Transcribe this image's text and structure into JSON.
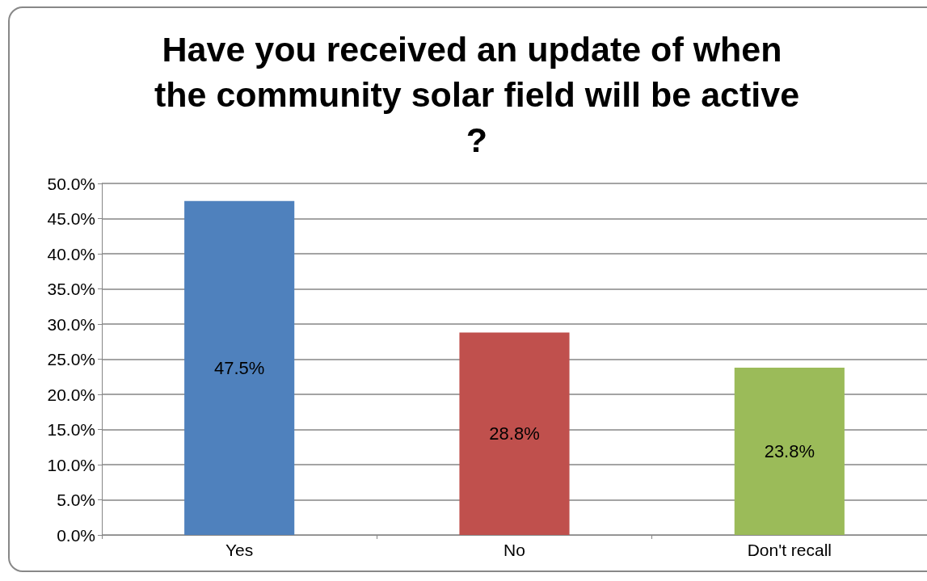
{
  "chart_data": {
    "type": "bar",
    "title": "Have you received an update of when the community solar field will be active?",
    "categories": [
      "Yes",
      "No",
      "Don't recall"
    ],
    "values": [
      47.5,
      28.8,
      23.8
    ],
    "colors": [
      "#4f81bd",
      "#c0504d",
      "#9bbb59"
    ],
    "value_labels": [
      "47.5%",
      "28.8%",
      "23.8%"
    ],
    "ylim": [
      0,
      50
    ],
    "yticks": [
      {
        "value": 0,
        "label": "0.0%"
      },
      {
        "value": 5,
        "label": "5.0%"
      },
      {
        "value": 10,
        "label": "10.0%"
      },
      {
        "value": 15,
        "label": "15.0%"
      },
      {
        "value": 20,
        "label": "20.0%"
      },
      {
        "value": 25,
        "label": "25.0%"
      },
      {
        "value": 30,
        "label": "30.0%"
      },
      {
        "value": 35,
        "label": "35.0%"
      },
      {
        "value": 40,
        "label": "40.0%"
      },
      {
        "value": 45,
        "label": "45.0%"
      },
      {
        "value": 50,
        "label": "50.0%"
      }
    ],
    "grid": "y"
  }
}
